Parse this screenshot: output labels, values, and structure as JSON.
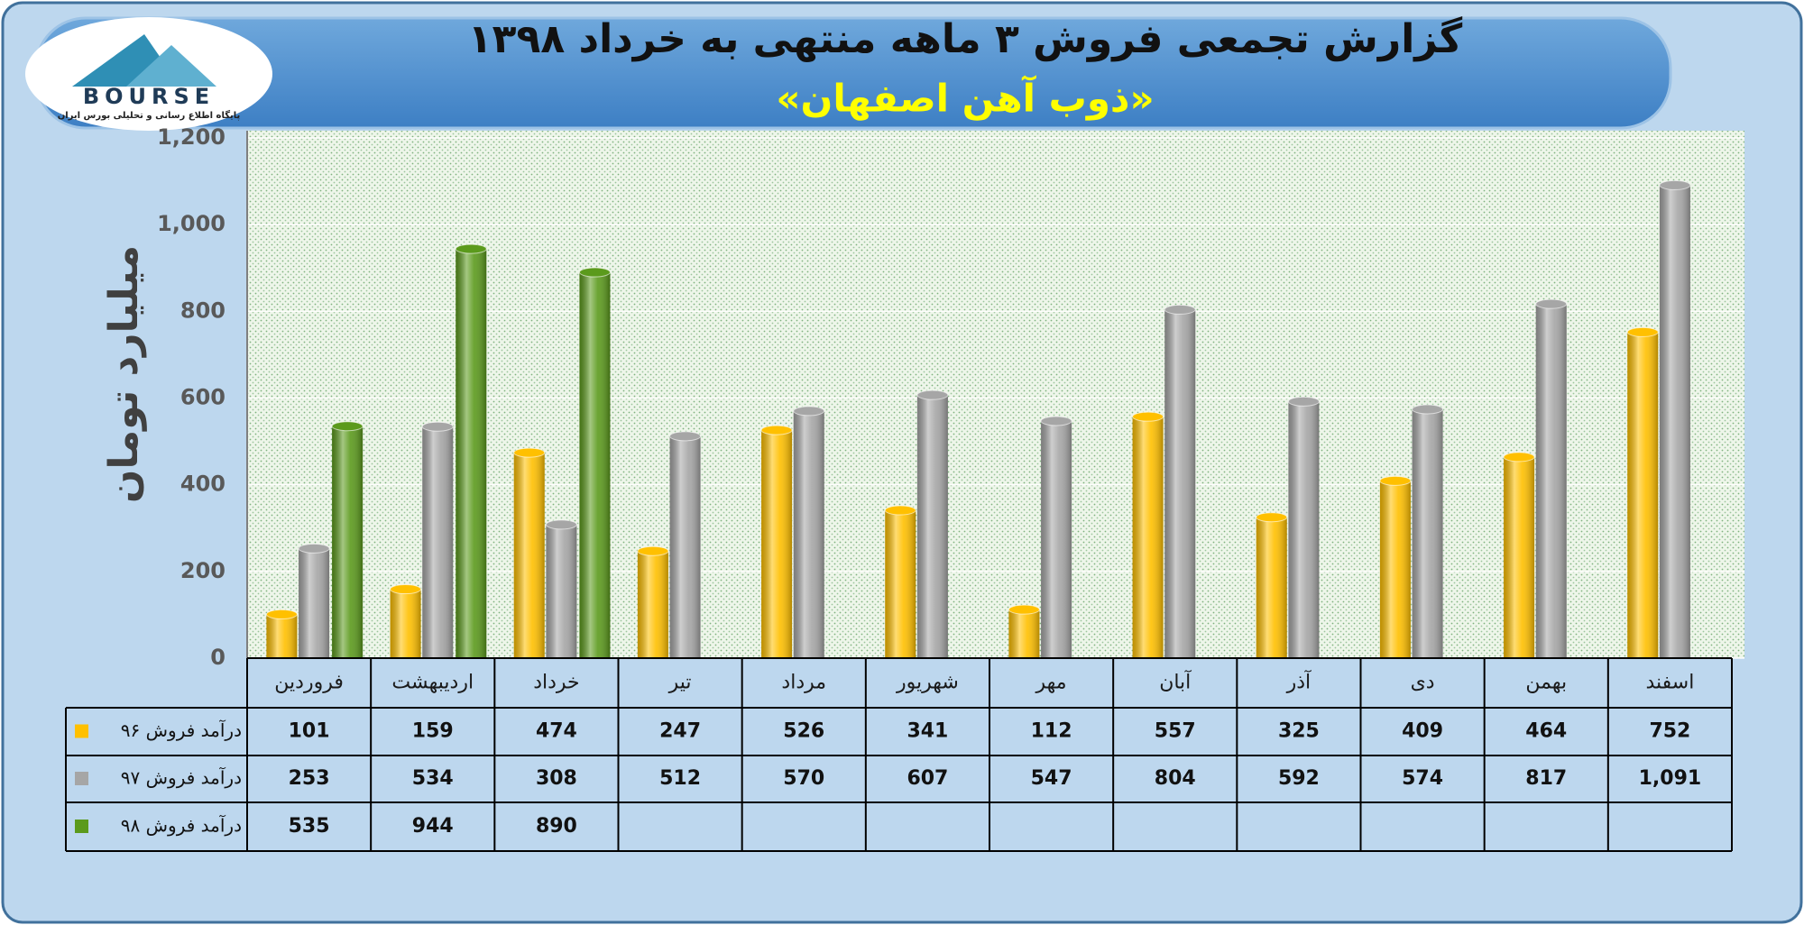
{
  "logo": {
    "text": "BOURSE",
    "tagline": "پایگاه اطلاع رسانی و تحلیلی بورس ایران"
  },
  "chart_data": {
    "type": "bar",
    "title": "گزارش تجمعی فروش ۳ ماهه منتهی به خرداد ۱۳۹۸",
    "subtitle": "«ذوب آهن اصفهان»",
    "y_label": "میلیارد تومان",
    "categories": [
      "فروردین",
      "اردیبهشت",
      "خرداد",
      "تیر",
      "مرداد",
      "شهریور",
      "مهر",
      "آبان",
      "آذر",
      "دی",
      "بهمن",
      "اسفند"
    ],
    "series": [
      {
        "name": "درآمد فروش ۹۶",
        "color": "#ffc000",
        "values": [
          101,
          159,
          474,
          247,
          526,
          341,
          112,
          557,
          325,
          409,
          464,
          752
        ]
      },
      {
        "name": "درآمد فروش ۹۷",
        "color": "#a6a6a6",
        "values": [
          253,
          534,
          308,
          512,
          570,
          607,
          547,
          804,
          592,
          574,
          817,
          1091
        ],
        "value_labels": [
          "253",
          "534",
          "308",
          "512",
          "570",
          "607",
          "547",
          "804",
          "592",
          "574",
          "817",
          "1,091"
        ]
      },
      {
        "name": "درآمد فروش ۹۸",
        "color": "#5b9a1c",
        "values": [
          535,
          944,
          890,
          null,
          null,
          null,
          null,
          null,
          null,
          null,
          null,
          null
        ]
      }
    ],
    "ylim": [
      0,
      1200
    ],
    "yticks": [
      0,
      200,
      400,
      600,
      800,
      {
        "value": 1000,
        "label": "1,000"
      },
      {
        "value": 1200,
        "label": "1,200"
      }
    ],
    "grid": true
  }
}
